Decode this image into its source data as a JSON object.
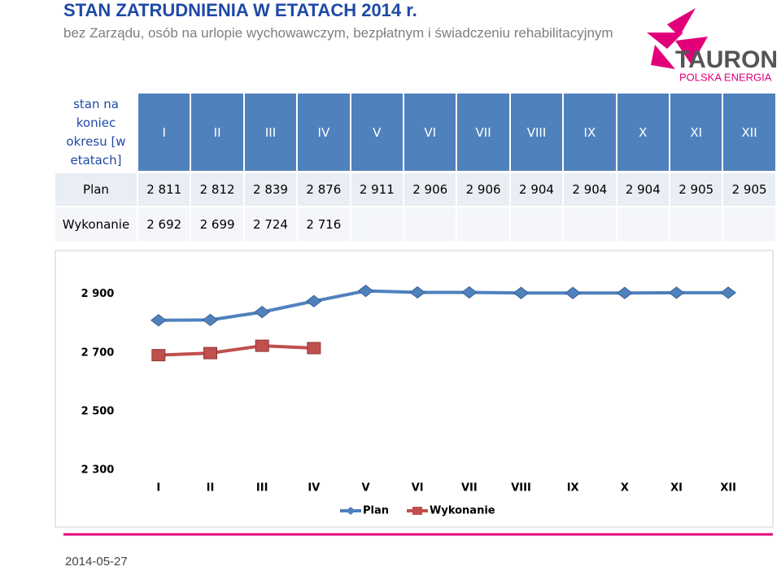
{
  "header": {
    "title": "STAN ZATRUDNIENIA W ETATACH 2014 r.",
    "subtitle": "bez Zarządu, osób na urlopie wychowawczym, bezpłatnym i świadczeniu rehabilitacyjnym",
    "logo": [
      "TAURON",
      "POLSKA ENERGIA"
    ]
  },
  "table": {
    "header": [
      "stan na koniec okresu [w etatach]",
      "I",
      "II",
      "III",
      "IV",
      "V",
      "VI",
      "VII",
      "VIII",
      "IX",
      "X",
      "XI",
      "XII"
    ],
    "rows": [
      [
        "Plan",
        "2 811",
        "2 812",
        "2 839",
        "2 876",
        "2 911",
        "2 906",
        "2 906",
        "2 904",
        "2 904",
        "2 904",
        "2 905",
        "2 905"
      ],
      [
        "Wykonanie",
        "2 692",
        "2 699",
        "2 724",
        "2 716"
      ]
    ]
  },
  "chart_data": {
    "type": "line",
    "categories": [
      "I",
      "II",
      "III",
      "IV",
      "V",
      "VI",
      "VII",
      "VIII",
      "IX",
      "X",
      "XI",
      "XII"
    ],
    "series": [
      {
        "name": "Plan",
        "color": "#4f81bd",
        "values": [
          2811,
          2812,
          2839,
          2876,
          2911,
          2906,
          2906,
          2904,
          2904,
          2904,
          2905,
          2905
        ]
      },
      {
        "name": "Wykonanie",
        "color": "#c0504d",
        "values": [
          2692,
          2699,
          2724,
          2716,
          null,
          null,
          null,
          null,
          null,
          null,
          null,
          null
        ]
      }
    ],
    "ylim": [
      2300,
      2960
    ],
    "yticks": [
      {
        "value": 2300,
        "label": "2 300"
      },
      {
        "value": 2500,
        "label": "2 500"
      },
      {
        "value": 2700,
        "label": "2 700"
      },
      {
        "value": 2900,
        "label": "2 900"
      }
    ]
  },
  "footer": {
    "date": "2014-05-27"
  }
}
